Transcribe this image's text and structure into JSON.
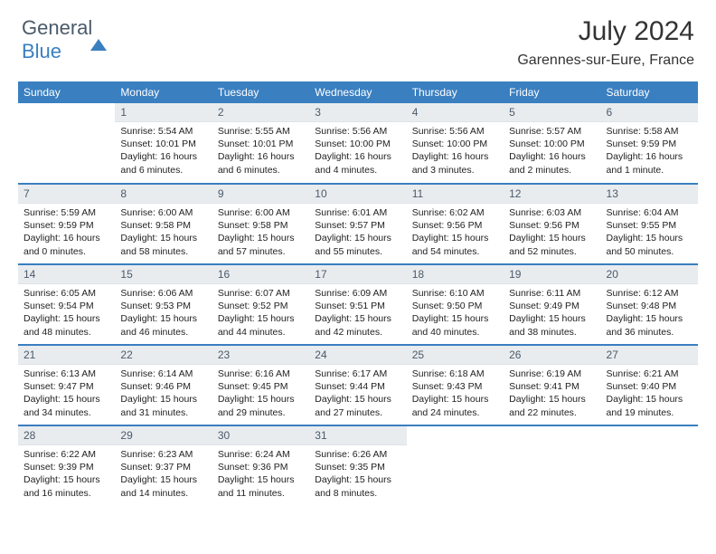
{
  "brand": {
    "part1": "General",
    "part2": "Blue"
  },
  "title": "July 2024",
  "location": "Garennes-sur-Eure, France",
  "headers": [
    "Sunday",
    "Monday",
    "Tuesday",
    "Wednesday",
    "Thursday",
    "Friday",
    "Saturday"
  ],
  "colors": {
    "header_bg": "#3a7fc0",
    "header_text": "#ffffff",
    "daynum_bg": "#e9ecef",
    "separator": "#3a7fc0",
    "text": "#222222"
  },
  "weeks": [
    [
      null,
      {
        "n": "1",
        "sr": "5:54 AM",
        "ss": "10:01 PM",
        "dl": "16 hours and 6 minutes."
      },
      {
        "n": "2",
        "sr": "5:55 AM",
        "ss": "10:01 PM",
        "dl": "16 hours and 6 minutes."
      },
      {
        "n": "3",
        "sr": "5:56 AM",
        "ss": "10:00 PM",
        "dl": "16 hours and 4 minutes."
      },
      {
        "n": "4",
        "sr": "5:56 AM",
        "ss": "10:00 PM",
        "dl": "16 hours and 3 minutes."
      },
      {
        "n": "5",
        "sr": "5:57 AM",
        "ss": "10:00 PM",
        "dl": "16 hours and 2 minutes."
      },
      {
        "n": "6",
        "sr": "5:58 AM",
        "ss": "9:59 PM",
        "dl": "16 hours and 1 minute."
      }
    ],
    [
      {
        "n": "7",
        "sr": "5:59 AM",
        "ss": "9:59 PM",
        "dl": "16 hours and 0 minutes."
      },
      {
        "n": "8",
        "sr": "6:00 AM",
        "ss": "9:58 PM",
        "dl": "15 hours and 58 minutes."
      },
      {
        "n": "9",
        "sr": "6:00 AM",
        "ss": "9:58 PM",
        "dl": "15 hours and 57 minutes."
      },
      {
        "n": "10",
        "sr": "6:01 AM",
        "ss": "9:57 PM",
        "dl": "15 hours and 55 minutes."
      },
      {
        "n": "11",
        "sr": "6:02 AM",
        "ss": "9:56 PM",
        "dl": "15 hours and 54 minutes."
      },
      {
        "n": "12",
        "sr": "6:03 AM",
        "ss": "9:56 PM",
        "dl": "15 hours and 52 minutes."
      },
      {
        "n": "13",
        "sr": "6:04 AM",
        "ss": "9:55 PM",
        "dl": "15 hours and 50 minutes."
      }
    ],
    [
      {
        "n": "14",
        "sr": "6:05 AM",
        "ss": "9:54 PM",
        "dl": "15 hours and 48 minutes."
      },
      {
        "n": "15",
        "sr": "6:06 AM",
        "ss": "9:53 PM",
        "dl": "15 hours and 46 minutes."
      },
      {
        "n": "16",
        "sr": "6:07 AM",
        "ss": "9:52 PM",
        "dl": "15 hours and 44 minutes."
      },
      {
        "n": "17",
        "sr": "6:09 AM",
        "ss": "9:51 PM",
        "dl": "15 hours and 42 minutes."
      },
      {
        "n": "18",
        "sr": "6:10 AM",
        "ss": "9:50 PM",
        "dl": "15 hours and 40 minutes."
      },
      {
        "n": "19",
        "sr": "6:11 AM",
        "ss": "9:49 PM",
        "dl": "15 hours and 38 minutes."
      },
      {
        "n": "20",
        "sr": "6:12 AM",
        "ss": "9:48 PM",
        "dl": "15 hours and 36 minutes."
      }
    ],
    [
      {
        "n": "21",
        "sr": "6:13 AM",
        "ss": "9:47 PM",
        "dl": "15 hours and 34 minutes."
      },
      {
        "n": "22",
        "sr": "6:14 AM",
        "ss": "9:46 PM",
        "dl": "15 hours and 31 minutes."
      },
      {
        "n": "23",
        "sr": "6:16 AM",
        "ss": "9:45 PM",
        "dl": "15 hours and 29 minutes."
      },
      {
        "n": "24",
        "sr": "6:17 AM",
        "ss": "9:44 PM",
        "dl": "15 hours and 27 minutes."
      },
      {
        "n": "25",
        "sr": "6:18 AM",
        "ss": "9:43 PM",
        "dl": "15 hours and 24 minutes."
      },
      {
        "n": "26",
        "sr": "6:19 AM",
        "ss": "9:41 PM",
        "dl": "15 hours and 22 minutes."
      },
      {
        "n": "27",
        "sr": "6:21 AM",
        "ss": "9:40 PM",
        "dl": "15 hours and 19 minutes."
      }
    ],
    [
      {
        "n": "28",
        "sr": "6:22 AM",
        "ss": "9:39 PM",
        "dl": "15 hours and 16 minutes."
      },
      {
        "n": "29",
        "sr": "6:23 AM",
        "ss": "9:37 PM",
        "dl": "15 hours and 14 minutes."
      },
      {
        "n": "30",
        "sr": "6:24 AM",
        "ss": "9:36 PM",
        "dl": "15 hours and 11 minutes."
      },
      {
        "n": "31",
        "sr": "6:26 AM",
        "ss": "9:35 PM",
        "dl": "15 hours and 8 minutes."
      },
      null,
      null,
      null
    ]
  ],
  "labels": {
    "sunrise": "Sunrise:",
    "sunset": "Sunset:",
    "daylight": "Daylight:"
  }
}
